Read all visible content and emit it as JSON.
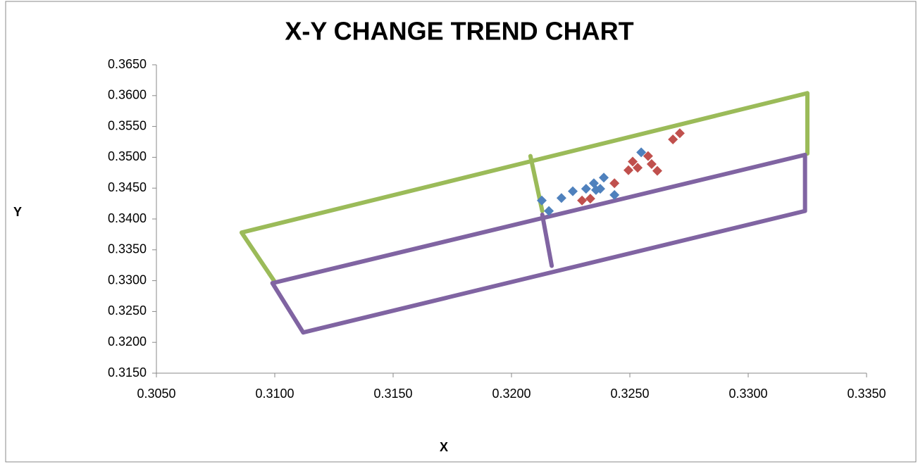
{
  "chart_data": {
    "type": "scatter",
    "title": "X-Y CHANGE TREND CHART",
    "x_label": "X",
    "y_label": "Y",
    "xlim": [
      0.305,
      0.335
    ],
    "xticks": [
      {
        "value": 0.305,
        "label": "0.3050"
      },
      {
        "value": 0.31,
        "label": "0.3100"
      },
      {
        "value": 0.315,
        "label": "0.3150"
      },
      {
        "value": 0.32,
        "label": "0.3200"
      },
      {
        "value": 0.325,
        "label": "0.3250"
      },
      {
        "value": 0.33,
        "label": "0.3300"
      },
      {
        "value": 0.335,
        "label": "0.3350"
      }
    ],
    "ylim": [
      0.315,
      0.365
    ],
    "yticks": [
      {
        "value": 0.315,
        "label": "0.3150"
      },
      {
        "value": 0.32,
        "label": "0.3200"
      },
      {
        "value": 0.325,
        "label": "0.3250"
      },
      {
        "value": 0.33,
        "label": "0.3300"
      },
      {
        "value": 0.335,
        "label": "0.3350"
      },
      {
        "value": 0.34,
        "label": "0.3400"
      },
      {
        "value": 0.345,
        "label": "0.3450"
      },
      {
        "value": 0.35,
        "label": "0.3500"
      },
      {
        "value": 0.355,
        "label": "0.3550"
      },
      {
        "value": 0.36,
        "label": "0.3600"
      },
      {
        "value": 0.365,
        "label": "0.3650"
      }
    ],
    "grid": false,
    "series": [
      {
        "color": "#9bbb59",
        "mode": "lines",
        "x": [
          0.31,
          0.3086,
          0.3325,
          0.3325,
          null,
          0.3208,
          0.3213
        ],
        "y": [
          0.3298,
          0.3378,
          0.3604,
          0.3506,
          null,
          0.3502,
          0.3413
        ]
      },
      {
        "color": "#8064a2",
        "mode": "lines",
        "x": [
          0.3099,
          0.3324,
          0.3324,
          0.3112,
          0.3099,
          null,
          0.3213,
          0.3217
        ],
        "y": [
          0.3296,
          0.3504,
          0.3413,
          0.3216,
          0.3296,
          null,
          0.3407,
          0.3324
        ]
      },
      {
        "color": "#4f81bd",
        "mode": "markers",
        "x": [
          0.32128,
          0.32158,
          0.32211,
          0.32259,
          0.32315,
          0.32348,
          0.32357,
          0.32375,
          0.3239,
          0.32435,
          0.32548
        ],
        "y": [
          0.343,
          0.3413,
          0.3434,
          0.3445,
          0.3449,
          0.3458,
          0.3447,
          0.3449,
          0.3467,
          0.3439,
          0.3508
        ]
      },
      {
        "color": "#c0504d",
        "mode": "markers",
        "x": [
          0.32298,
          0.32333,
          0.32435,
          0.32494,
          0.32512,
          0.32533,
          0.32577,
          0.32592,
          0.32616,
          0.32682,
          0.32711
        ],
        "y": [
          0.343,
          0.3433,
          0.3458,
          0.3479,
          0.3493,
          0.3483,
          0.3502,
          0.3489,
          0.3478,
          0.3529,
          0.3539
        ]
      }
    ]
  }
}
